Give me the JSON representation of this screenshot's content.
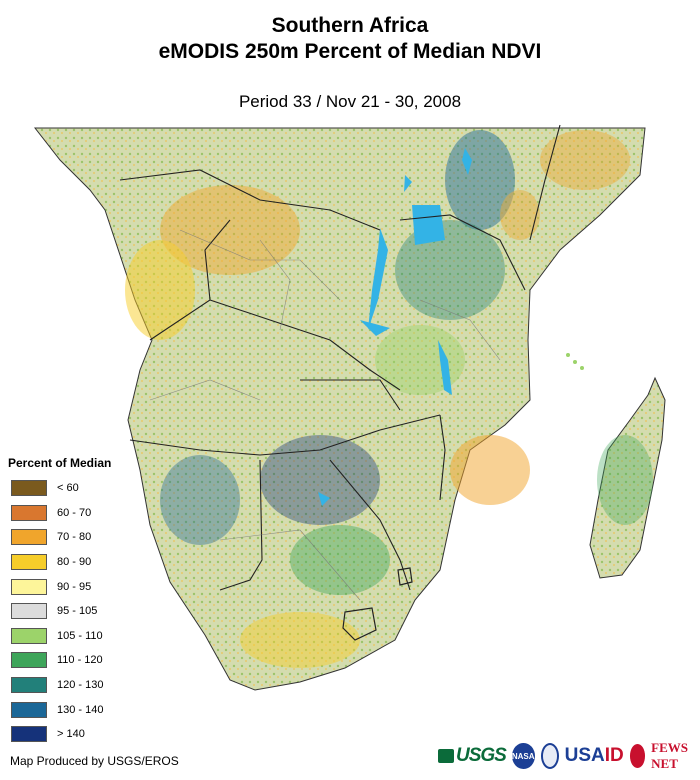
{
  "header": {
    "title_line1": "Southern Africa",
    "title_line2": "eMODIS 250m Percent of Median NDVI",
    "period": "Period 33 / Nov 21 - 30, 2008"
  },
  "legend": {
    "title": "Percent of Median",
    "items": [
      {
        "label": "< 60",
        "color": "#7a5a1e"
      },
      {
        "label": "60 - 70",
        "color": "#d9772f"
      },
      {
        "label": "70 - 80",
        "color": "#f0a52c"
      },
      {
        "label": "80 - 90",
        "color": "#f6cd2a"
      },
      {
        "label": "90 - 95",
        "color": "#fdf59a"
      },
      {
        "label": "95 - 105",
        "color": "#dcdcdc"
      },
      {
        "label": "105 - 110",
        "color": "#9cd36a"
      },
      {
        "label": "110 - 120",
        "color": "#3ea55a"
      },
      {
        "label": "120 - 130",
        "color": "#22807a"
      },
      {
        "label": "130 - 140",
        "color": "#1b6797"
      },
      {
        "label": "> 140",
        "color": "#15327a"
      }
    ]
  },
  "credit": "Map Produced by USGS/EROS",
  "logos": {
    "usgs": "USGS",
    "nasa": "NASA",
    "usaid_prefix": "USA",
    "usaid_suffix": "ID",
    "fews": "FEWS NET"
  }
}
